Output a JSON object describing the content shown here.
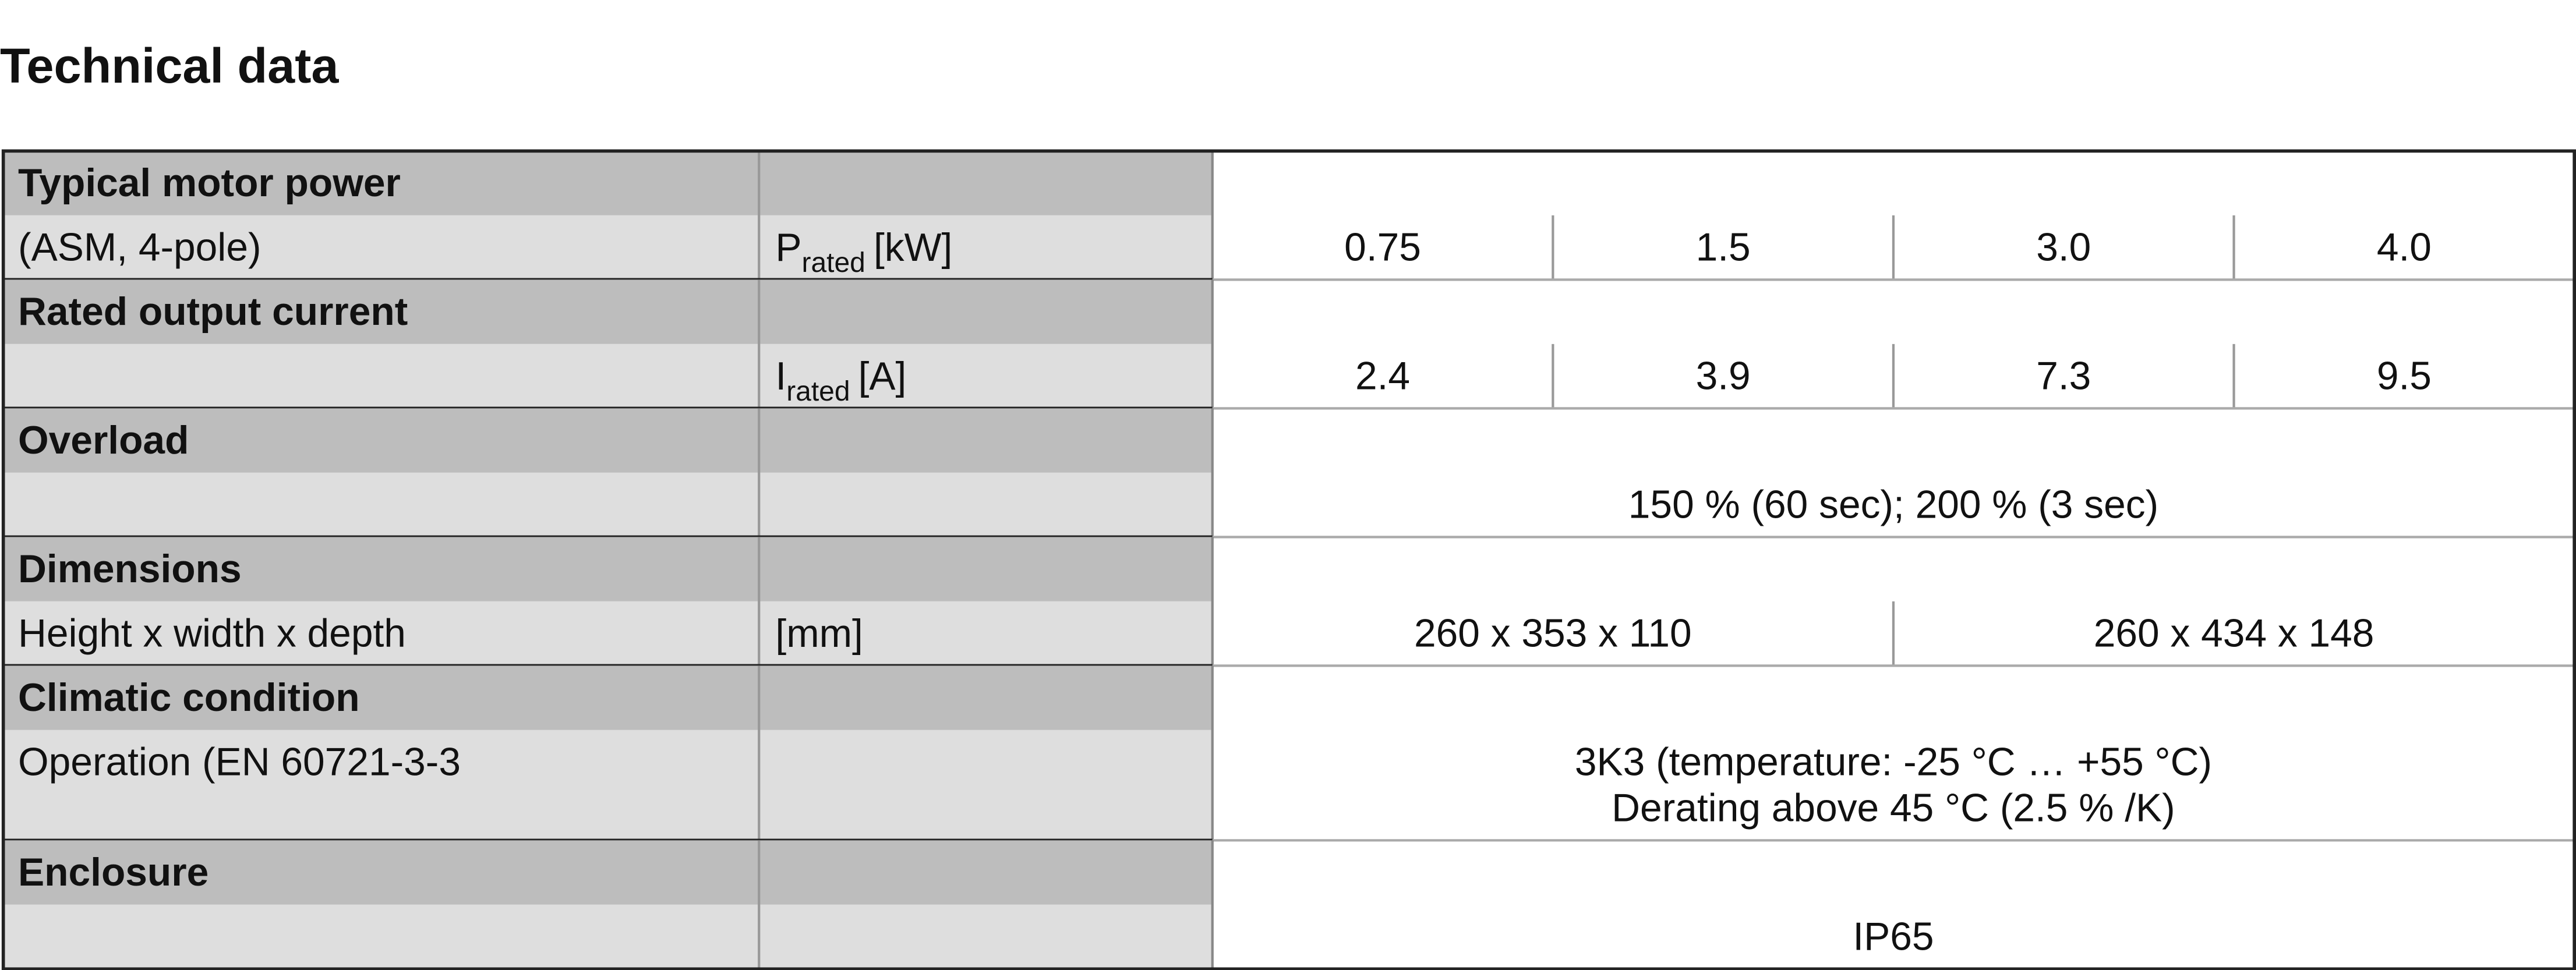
{
  "title": "Technical data",
  "table": {
    "sections": [
      {
        "label": "Typical motor power",
        "sublabel": "(ASM, 4-pole)",
        "quantity": {
          "symbol": "P",
          "subscript": "rated",
          "unit": "[kW]"
        },
        "values": [
          "0.75",
          "1.5",
          "3.0",
          "4.0"
        ]
      },
      {
        "label": "Rated output current",
        "quantity": {
          "symbol": "I",
          "subscript": "rated",
          "unit": "[A]"
        },
        "values": [
          "2.4",
          "3.9",
          "7.3",
          "9.5"
        ]
      },
      {
        "label": "Overload",
        "values": [
          "150 % (60 sec); 200 % (3 sec)"
        ]
      },
      {
        "label": "Dimensions",
        "sublabel": "Height x width x depth",
        "quantity": {
          "unit": "[mm]"
        },
        "values": [
          "260 x 353 x 110",
          "260 x 434 x 148"
        ]
      },
      {
        "label": "Climatic condition",
        "sublabel": "Operation (EN 60721-3-3",
        "values": [
          [
            "3K3 (temperature: -25 °C … +55 °C)",
            "Derating above 45 °C (2.5 % /K)"
          ]
        ]
      },
      {
        "label": "Enclosure",
        "values": [
          "IP65"
        ]
      }
    ]
  }
}
